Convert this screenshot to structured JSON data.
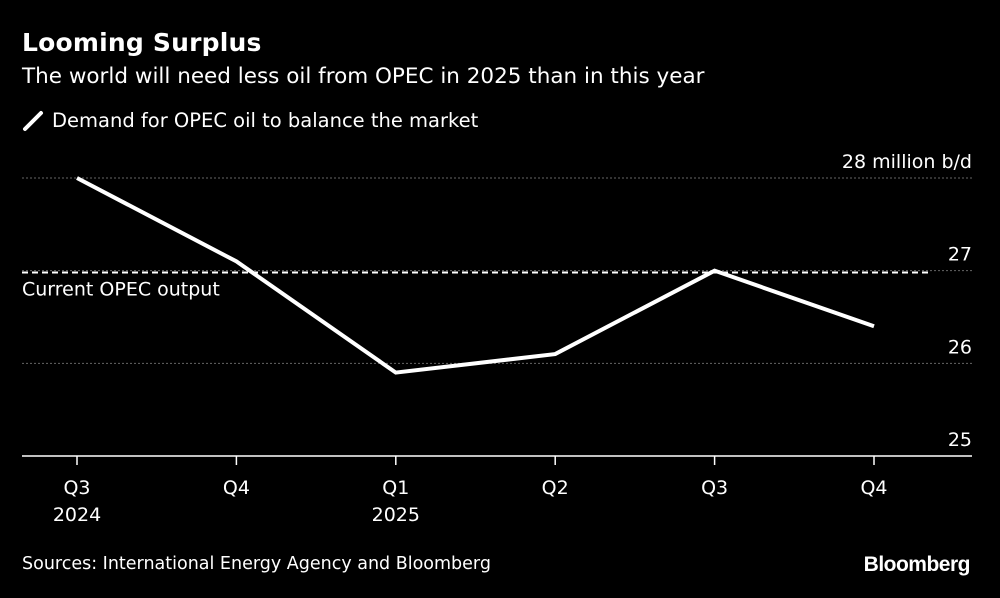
{
  "title": "Looming Surplus",
  "subtitle": "The world will need less oil from OPEC in 2025 than in this year",
  "legend_label": "Demand for OPEC oil to balance the market",
  "source": "Sources: International Energy Agency and Bloomberg",
  "logo": "Bloomberg",
  "colors": {
    "background": "#000000",
    "line": "#ffffff",
    "grid": "#666666",
    "text": "#ffffff"
  },
  "chart_data": {
    "type": "line",
    "categories": [
      "Q3",
      "Q4",
      "Q1",
      "Q2",
      "Q3",
      "Q4"
    ],
    "category_years": [
      "2024",
      "",
      "2025",
      "",
      "",
      ""
    ],
    "series": [
      {
        "name": "Demand for OPEC oil to balance the market",
        "values": [
          28.0,
          27.1,
          25.9,
          26.1,
          27.0,
          26.4
        ]
      }
    ],
    "reference_line": {
      "label": "Current OPEC output",
      "value": 26.98
    },
    "ylim": [
      25,
      28
    ],
    "yticks": [
      {
        "value": 28,
        "label": "28 million b/d"
      },
      {
        "value": 27,
        "label": "27"
      },
      {
        "value": 26,
        "label": "26"
      },
      {
        "value": 25,
        "label": "25"
      }
    ],
    "grid": true,
    "legend_position": "top-left"
  }
}
